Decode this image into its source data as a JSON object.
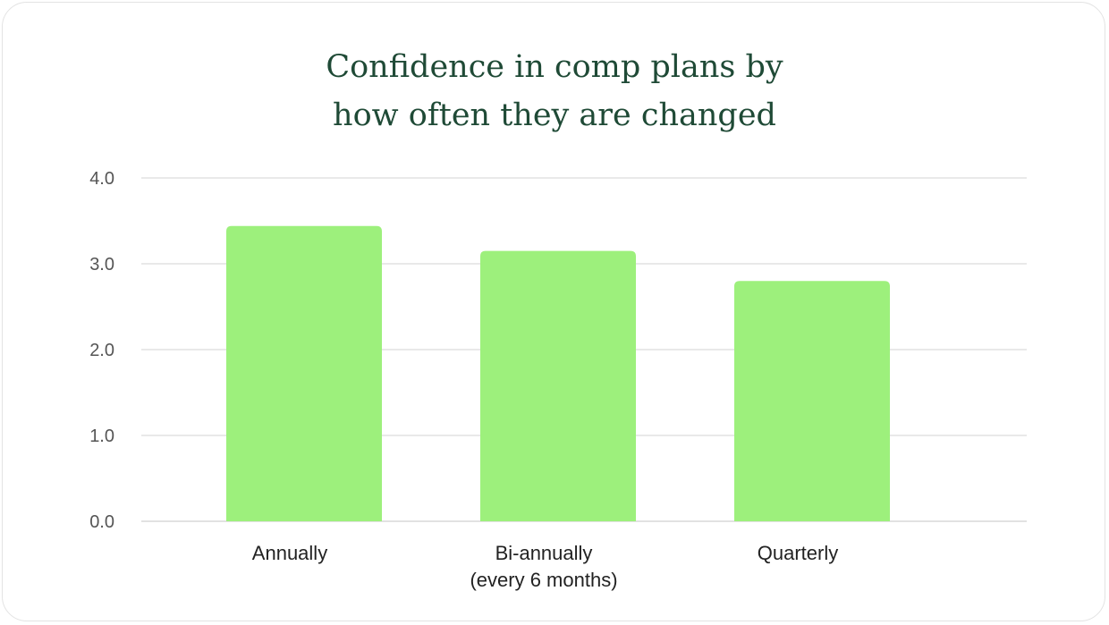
{
  "chart_data": {
    "type": "bar",
    "title_lines": [
      "Confidence in comp plans by",
      "how often they are changed"
    ],
    "categories": [
      [
        "Annually"
      ],
      [
        "Bi-annually",
        "(every 6 months)"
      ],
      [
        "Quarterly"
      ]
    ],
    "values": [
      3.44,
      3.15,
      2.8
    ],
    "ylim": [
      0,
      4
    ],
    "yticks": [
      "0.0",
      "1.0",
      "2.0",
      "3.0",
      "4.0"
    ],
    "grid": true,
    "bar_color": "#9df07c",
    "grid_color": "#e2e2e2"
  }
}
